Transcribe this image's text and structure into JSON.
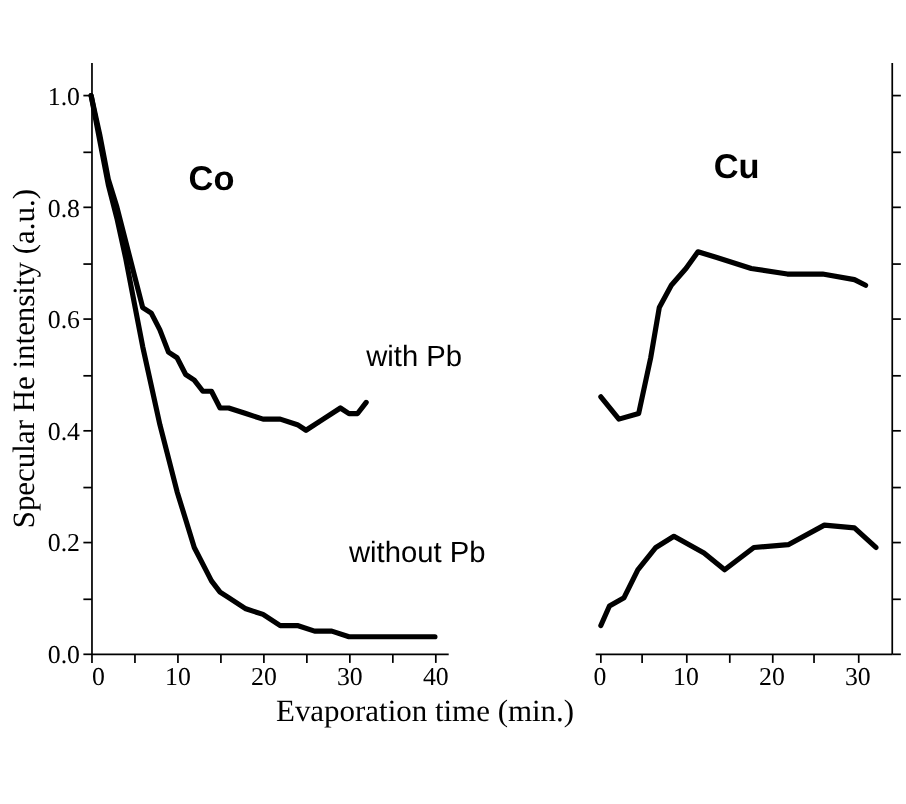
{
  "chart_data": [
    {
      "type": "line",
      "xlabel": "Evaporation time (min.)",
      "ylabel": "Specular He intensity (a.u.)",
      "xlim": [
        0,
        41.5
      ],
      "ylim": [
        0,
        1.06
      ],
      "xticks": [
        0,
        {
          "value": 5,
          "label": null
        },
        10,
        {
          "value": 15,
          "label": null
        },
        20,
        {
          "value": 25,
          "label": null
        },
        30,
        {
          "value": 35,
          "label": null
        },
        40
      ],
      "yticks": [
        {
          "value": 0,
          "label": "0.0"
        },
        {
          "value": 0.1,
          "label": null
        },
        0.2,
        {
          "value": 0.3,
          "label": null
        },
        0.4,
        {
          "value": 0.5,
          "label": null
        },
        0.6,
        {
          "value": 0.7,
          "label": null
        },
        0.8,
        {
          "value": 0.9,
          "label": null
        },
        {
          "value": 1,
          "label": "1.0"
        }
      ],
      "marker": "none",
      "line_style": "solid",
      "grid": false,
      "annotations": [
        "Co",
        "with Pb",
        "without Pb"
      ],
      "series": [
        {
          "color": "#000000",
          "x": [
            0,
            1,
            2,
            3,
            4,
            5,
            6,
            7,
            8,
            9,
            10,
            11,
            12,
            13,
            14,
            15,
            16,
            18,
            20,
            22,
            24,
            25,
            27,
            29,
            30,
            31,
            32
          ],
          "values": [
            1.0,
            0.93,
            0.85,
            0.8,
            0.74,
            0.68,
            0.62,
            0.61,
            0.58,
            0.54,
            0.53,
            0.5,
            0.49,
            0.47,
            0.47,
            0.44,
            0.44,
            0.43,
            0.42,
            0.42,
            0.41,
            0.4,
            0.42,
            0.44,
            0.43,
            0.43,
            0.45
          ]
        },
        {
          "color": "#000000",
          "x": [
            0,
            1,
            2,
            3,
            4,
            5,
            6,
            7,
            8,
            9,
            10,
            11,
            12,
            13,
            14,
            15,
            16,
            18,
            20,
            22,
            24,
            26,
            28,
            30,
            32,
            35,
            38,
            40
          ],
          "values": [
            1.0,
            0.92,
            0.84,
            0.78,
            0.71,
            0.63,
            0.55,
            0.48,
            0.41,
            0.35,
            0.29,
            0.24,
            0.19,
            0.16,
            0.13,
            0.11,
            0.1,
            0.08,
            0.07,
            0.05,
            0.05,
            0.04,
            0.04,
            0.03,
            0.03,
            0.03,
            0.03,
            0.03
          ]
        }
      ]
    },
    {
      "type": "line",
      "tick_labels": "x",
      "xlim": [
        -0.5,
        34
      ],
      "ylim": [
        0,
        1.06
      ],
      "xticks": [
        0,
        {
          "value": 5,
          "label": null
        },
        10,
        {
          "value": 15,
          "label": null
        },
        20,
        {
          "value": 25,
          "label": null
        },
        30
      ],
      "yticks": [
        0,
        0.1,
        0.2,
        0.3,
        0.4,
        0.5,
        0.6,
        0.7,
        0.8,
        0.9,
        1
      ],
      "marker": "none",
      "line_style": "solid",
      "grid": false,
      "annotations": [
        "Cu"
      ],
      "series": [
        {
          "color": "#000000",
          "x": [
            0.2,
            2.3,
            4.6,
            6,
            7,
            8.4,
            10.1,
            11.5,
            13.6,
            17.7,
            21.9,
            26,
            29.7,
            31
          ],
          "values": [
            0.46,
            0.42,
            0.43,
            0.53,
            0.62,
            0.66,
            0.69,
            0.72,
            0.71,
            0.69,
            0.68,
            0.68,
            0.67,
            0.66
          ]
        },
        {
          "color": "#000000",
          "x": [
            0.2,
            1.2,
            2.9,
            4.5,
            6.6,
            8.7,
            12.2,
            14.6,
            18,
            22,
            26.2,
            29.7,
            32.2
          ],
          "values": [
            0.05,
            0.085,
            0.1,
            0.15,
            0.19,
            0.21,
            0.18,
            0.15,
            0.19,
            0.195,
            0.23,
            0.225,
            0.19
          ]
        }
      ]
    }
  ]
}
